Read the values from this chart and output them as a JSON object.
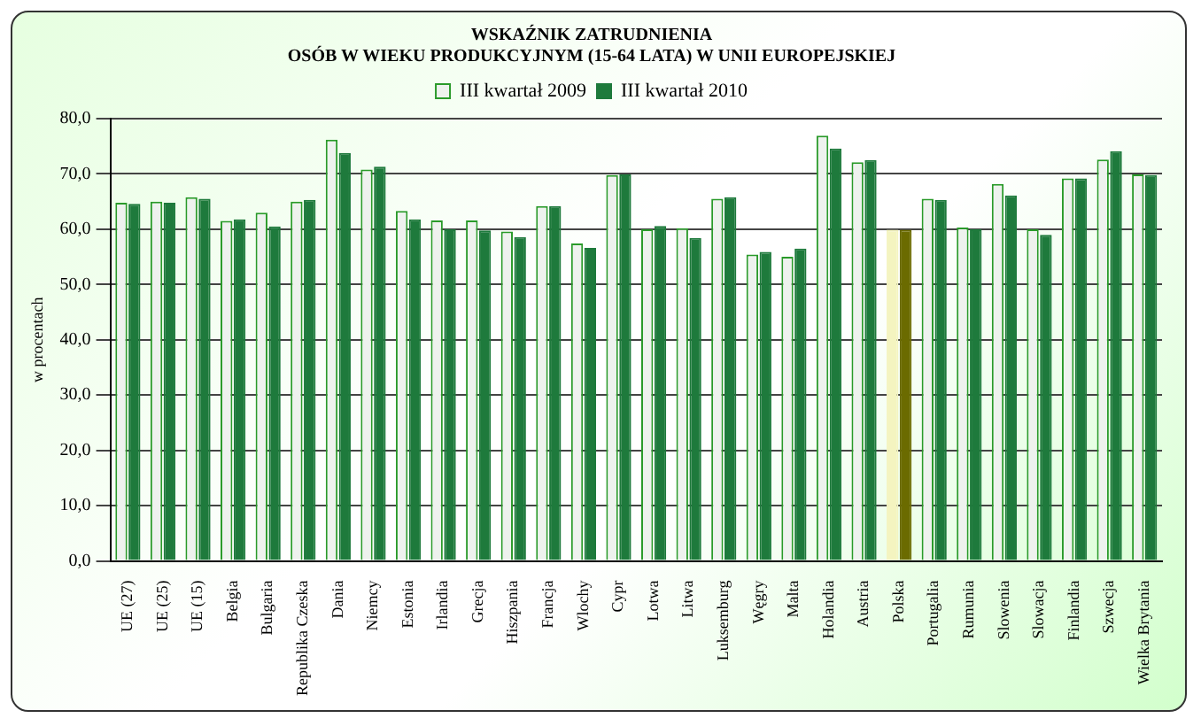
{
  "chart_data": {
    "type": "bar",
    "title": "WSKAŹNIK ZATRUDNIENIA\nOSÓB W WIEKU PRODUKCYJNYM (15-64 LATA) W UNII EUROPEJSKIEJ",
    "ylabel": "w procentach",
    "categories": [
      "UE (27)",
      "UE (25)",
      "UE (15)",
      "Belgia",
      "Bulgaria",
      "Republika Czeska",
      "Dania",
      "Niemcy",
      "Estonia",
      "Irlandia",
      "Grecja",
      "Hiszpania",
      "Francja",
      "Wlochy",
      "Cypr",
      "Lotwa",
      "Litwa",
      "Luksemburg",
      "Węgry",
      "Malta",
      "Holandia",
      "Austria",
      "Polska",
      "Portugalia",
      "Rumunia",
      "Slowenia",
      "Slowacja",
      "Finlandia",
      "Szwecja",
      "Wielka Brytania"
    ],
    "series": [
      {
        "name": "III kwartał 2009",
        "color": "#eef2ee",
        "colors": [
          "#eef2ee",
          "#eef2ee",
          "#eef2ee",
          "#eef2ee",
          "#eef2ee",
          "#eef2ee",
          "#eef2ee",
          "#eef2ee",
          "#eef2ee",
          "#eef2ee",
          "#eef2ee",
          "#eef2ee",
          "#eef2ee",
          "#eef2ee",
          "#eef2ee",
          "#eef2ee",
          "#eef2ee",
          "#eef2ee",
          "#eef2ee",
          "#eef2ee",
          "#eef2ee",
          "#eef2ee",
          "#f4f4c0",
          "#eef2ee",
          "#eef2ee",
          "#eef2ee",
          "#eef2ee",
          "#eef2ee",
          "#eef2ee",
          "#eef2ee"
        ],
        "values": [
          64.8,
          65.0,
          65.8,
          61.5,
          63.0,
          65.0,
          76.2,
          70.8,
          63.3,
          61.6,
          61.6,
          59.6,
          64.2,
          57.4,
          69.8,
          60.0,
          60.2,
          65.5,
          55.4,
          55.0,
          76.9,
          72.1,
          59.9,
          65.5,
          60.3,
          68.2,
          60.0,
          69.2,
          72.6,
          69.9
        ]
      },
      {
        "name": "III kwartał 2010",
        "color": "#1e7a3c",
        "colors": [
          "#1e7a3c",
          "#1e7a3c",
          "#1e7a3c",
          "#1e7a3c",
          "#1e7a3c",
          "#1e7a3c",
          "#1e7a3c",
          "#1e7a3c",
          "#1e7a3c",
          "#1e7a3c",
          "#1e7a3c",
          "#1e7a3c",
          "#1e7a3c",
          "#1e7a3c",
          "#1e7a3c",
          "#1e7a3c",
          "#1e7a3c",
          "#1e7a3c",
          "#1e7a3c",
          "#1e7a3c",
          "#1e7a3c",
          "#1e7a3c",
          "#6b6b00",
          "#1e7a3c",
          "#1e7a3c",
          "#1e7a3c",
          "#1e7a3c",
          "#1e7a3c",
          "#1e7a3c",
          "#1e7a3c"
        ],
        "values": [
          64.6,
          64.8,
          65.5,
          61.8,
          60.5,
          65.3,
          73.8,
          71.3,
          61.8,
          60.0,
          59.8,
          58.6,
          64.2,
          56.6,
          69.9,
          60.6,
          58.4,
          65.8,
          55.9,
          56.5,
          74.6,
          72.5,
          59.9,
          65.3,
          60.0,
          66.1,
          59.0,
          69.2,
          74.1,
          69.8
        ]
      }
    ],
    "ylim": [
      0,
      80
    ],
    "yticks": [
      {
        "value": 0,
        "label": "0,0"
      },
      {
        "value": 10,
        "label": "10,0"
      },
      {
        "value": 20,
        "label": "20,0"
      },
      {
        "value": 30,
        "label": "30,0"
      },
      {
        "value": 40,
        "label": "40,0"
      },
      {
        "value": 50,
        "label": "50,0"
      },
      {
        "value": 60,
        "label": "60,0"
      },
      {
        "value": 70,
        "label": "70,0"
      },
      {
        "value": 80,
        "label": "80,0"
      }
    ],
    "grid": "y",
    "legend": "top"
  }
}
